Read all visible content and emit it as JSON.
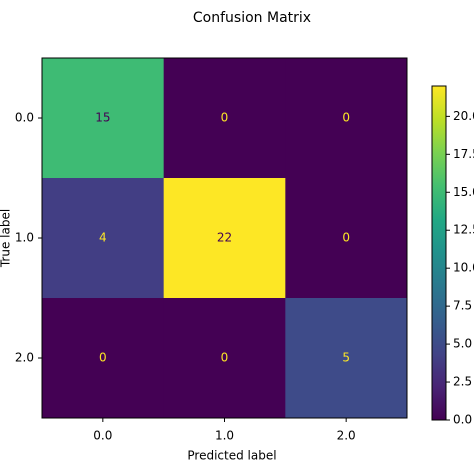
{
  "chart_data": {
    "type": "heatmap",
    "title": "Confusion Matrix",
    "xlabel": "Predicted label",
    "ylabel": "True label",
    "x_categories": [
      "0.0",
      "1.0",
      "2.0"
    ],
    "y_categories": [
      "0.0",
      "1.0",
      "2.0"
    ],
    "values": [
      [
        15,
        0,
        0
      ],
      [
        4,
        22,
        0
      ],
      [
        0,
        0,
        5
      ]
    ],
    "colormap": "viridis",
    "clim": [
      0,
      22
    ],
    "cticks": [
      {
        "value": 0,
        "label": "0.0"
      },
      2.5,
      {
        "value": 5,
        "label": "5.0"
      },
      7.5,
      {
        "value": 10,
        "label": "10.0"
      },
      12.5,
      {
        "value": 15,
        "label": "15.0"
      },
      17.5,
      {
        "value": 20,
        "label": "20.0"
      }
    ]
  }
}
